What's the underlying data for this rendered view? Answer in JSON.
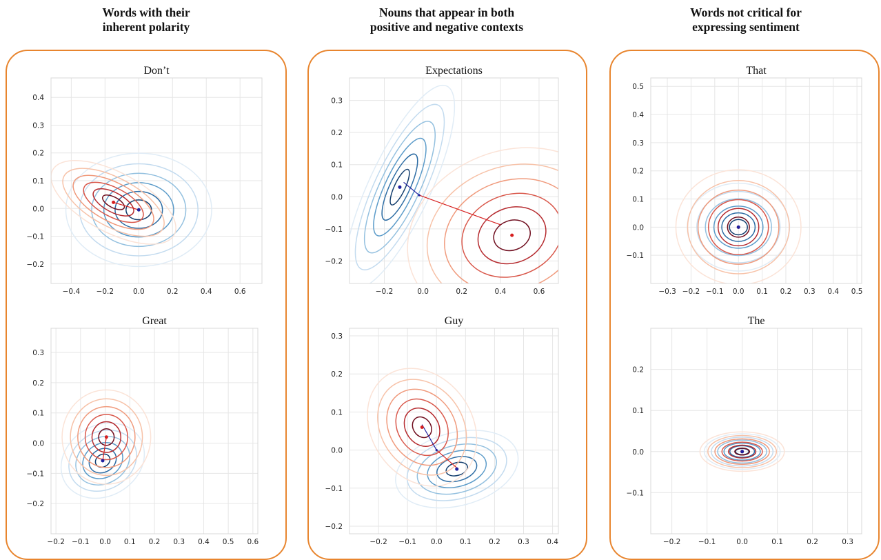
{
  "groups": [
    {
      "title_line1": "Words with their",
      "title_line2": "inherent polarity"
    },
    {
      "title_line1": "Nouns that appear in both",
      "title_line2": "positive and negative contexts"
    },
    {
      "title_line1": "Words not critical for",
      "title_line2": "expressing sentiment"
    }
  ],
  "colors": {
    "accent_border": "#E8852E",
    "positive_center": "#1f1f9e",
    "negative_center": "#d62020"
  },
  "chart_data": [
    {
      "type": "contour",
      "title": "Don’t",
      "xlim": [
        -0.52,
        0.73
      ],
      "ylim": [
        -0.27,
        0.47
      ],
      "xticks": [
        "−0.4",
        "−0.2",
        "0.0",
        "0.2",
        "0.4",
        "0.6"
      ],
      "xtick_values": [
        -0.4,
        -0.2,
        0.0,
        0.2,
        0.4,
        0.6
      ],
      "yticks": [
        "−0.2",
        "−0.1",
        "0.0",
        "0.1",
        "0.2",
        "0.3",
        "0.4"
      ],
      "ytick_values": [
        -0.2,
        -0.1,
        0.0,
        0.1,
        0.2,
        0.3,
        0.4
      ],
      "grid": true,
      "series": [
        {
          "color": "blue",
          "center": [
            0.0,
            -0.005
          ],
          "sx": 0.18,
          "sy": 0.085,
          "rot": 0
        },
        {
          "color": "red",
          "center": [
            -0.15,
            0.022
          ],
          "sx": 0.17,
          "sy": 0.045,
          "rot": 28
        }
      ]
    },
    {
      "type": "contour",
      "title": "Great",
      "xlim": [
        -0.22,
        0.62
      ],
      "ylim": [
        -0.3,
        0.38
      ],
      "xticks": [
        "−0.2",
        "−0.1",
        "0.0",
        "0.1",
        "0.2",
        "0.3",
        "0.4",
        "0.5",
        "0.6"
      ],
      "xtick_values": [
        -0.2,
        -0.1,
        0.0,
        0.1,
        0.2,
        0.3,
        0.4,
        0.5,
        0.6
      ],
      "yticks": [
        "−0.2",
        "−0.1",
        "0.0",
        "0.1",
        "0.2",
        "0.3"
      ],
      "ytick_values": [
        -0.2,
        -0.1,
        0.0,
        0.1,
        0.2,
        0.3
      ],
      "grid": true,
      "series": [
        {
          "color": "blue",
          "center": [
            -0.01,
            -0.058
          ],
          "sx": 0.06,
          "sy": 0.06,
          "rot": 60
        },
        {
          "color": "red",
          "center": [
            0.005,
            0.02
          ],
          "sx": 0.075,
          "sy": 0.065,
          "rot": 0
        }
      ]
    },
    {
      "type": "contour",
      "title": "Expectations",
      "xlim": [
        -0.38,
        0.7
      ],
      "ylim": [
        -0.27,
        0.37
      ],
      "xticks": [
        "−0.2",
        "0.0",
        "0.2",
        "0.4",
        "0.6"
      ],
      "xtick_values": [
        -0.2,
        0.0,
        0.2,
        0.4,
        0.6
      ],
      "yticks": [
        "−0.2",
        "−0.1",
        "0.0",
        "0.1",
        "0.2",
        "0.3"
      ],
      "ytick_values": [
        -0.2,
        -0.1,
        0.0,
        0.1,
        0.2,
        0.3
      ],
      "grid": true,
      "series": [
        {
          "color": "blue",
          "center": [
            -0.12,
            0.03
          ],
          "sx": 0.24,
          "sy": 0.04,
          "rot": -65
        },
        {
          "color": "red",
          "center": [
            0.46,
            -0.12
          ],
          "sx": 0.23,
          "sy": 0.11,
          "rot": -20
        }
      ],
      "lines": [
        [
          [
            -0.1,
            0.045
          ],
          [
            -0.02,
            0.005
          ],
          [
            0.4,
            -0.087
          ]
        ]
      ]
    },
    {
      "type": "contour",
      "title": "Guy",
      "xlim": [
        -0.3,
        0.42
      ],
      "ylim": [
        -0.22,
        0.32
      ],
      "xticks": [
        "−0.2",
        "−0.1",
        "0.0",
        "0.1",
        "0.2",
        "0.3",
        "0.4"
      ],
      "xtick_values": [
        -0.2,
        -0.1,
        0.0,
        0.1,
        0.2,
        0.3,
        0.4
      ],
      "yticks": [
        "−0.2",
        "−0.1",
        "0.0",
        "0.1",
        "0.2",
        "0.3"
      ],
      "ytick_values": [
        -0.2,
        -0.1,
        0.0,
        0.1,
        0.2,
        0.3
      ],
      "grid": true,
      "series": [
        {
          "color": "blue",
          "center": [
            0.07,
            -0.05
          ],
          "sx": 0.09,
          "sy": 0.04,
          "rot": -15
        },
        {
          "color": "red",
          "center": [
            -0.05,
            0.06
          ],
          "sx": 0.09,
          "sy": 0.055,
          "rot": 55
        }
      ],
      "lines": [
        [
          [
            -0.05,
            0.067
          ],
          [
            0.0,
            0.0
          ],
          [
            0.075,
            -0.05
          ]
        ]
      ]
    },
    {
      "type": "contour",
      "title": "That",
      "xlim": [
        -0.37,
        0.52
      ],
      "ylim": [
        -0.2,
        0.53
      ],
      "xticks": [
        "−0.3",
        "−0.2",
        "−0.1",
        "0.0",
        "0.1",
        "0.2",
        "0.3",
        "0.4",
        "0.5"
      ],
      "xtick_values": [
        -0.3,
        -0.2,
        -0.1,
        0.0,
        0.1,
        0.2,
        0.3,
        0.4,
        0.5
      ],
      "yticks": [
        "−0.1",
        "0.0",
        "0.1",
        "0.2",
        "0.3",
        "0.4",
        "0.5"
      ],
      "ytick_values": [
        -0.1,
        0.0,
        0.1,
        0.2,
        0.3,
        0.4,
        0.5
      ],
      "grid": true,
      "series": [
        {
          "color": "blue",
          "center": [
            0.0,
            0.0
          ],
          "sx": 0.09,
          "sy": 0.065,
          "rot": 0
        },
        {
          "color": "red",
          "center": [
            0.0,
            0.0
          ],
          "sx": 0.11,
          "sy": 0.085,
          "rot": 0
        }
      ]
    },
    {
      "type": "contour",
      "title": "The",
      "xlim": [
        -0.26,
        0.34
      ],
      "ylim": [
        -0.2,
        0.3
      ],
      "xticks": [
        "−0.2",
        "−0.1",
        "0.0",
        "0.1",
        "0.2",
        "0.3"
      ],
      "xtick_values": [
        -0.2,
        -0.1,
        0.0,
        0.1,
        0.2,
        0.3
      ],
      "yticks": [
        "−0.1",
        "0.0",
        "0.1",
        "0.2"
      ],
      "ytick_values": [
        -0.1,
        0.0,
        0.1,
        0.2
      ],
      "grid": true,
      "series": [
        {
          "color": "blue",
          "center": [
            0.0,
            0.0
          ],
          "sx": 0.045,
          "sy": 0.018,
          "rot": 0
        },
        {
          "color": "red",
          "center": [
            0.0,
            0.0
          ],
          "sx": 0.05,
          "sy": 0.02,
          "rot": 0
        }
      ]
    }
  ]
}
